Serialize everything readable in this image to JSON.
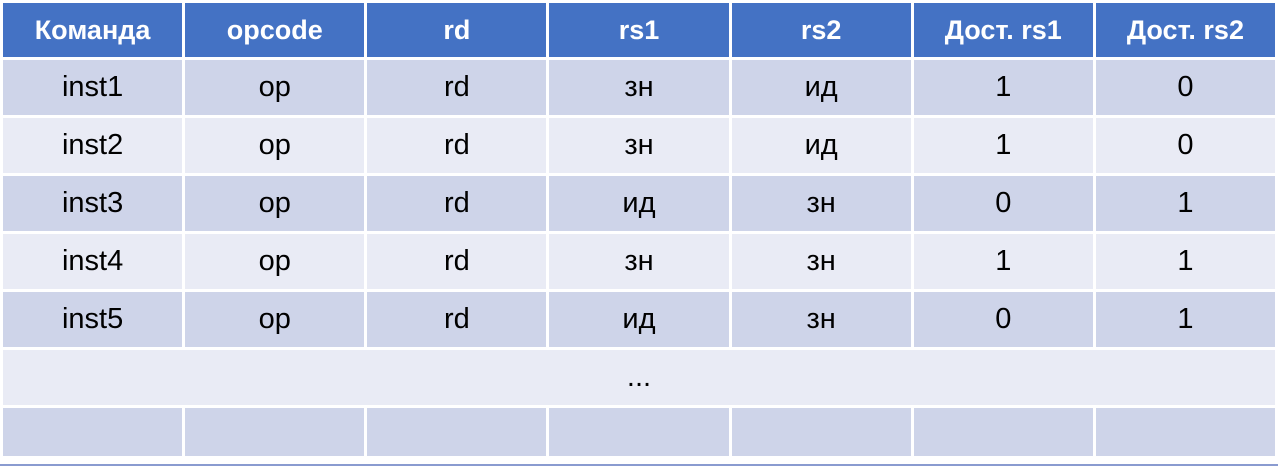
{
  "table": {
    "headers": [
      "Команда",
      "opcode",
      "rd",
      "rs1",
      "rs2",
      "Дост. rs1",
      "Дост. rs2"
    ],
    "rows": [
      [
        "inst1",
        "op",
        "rd",
        "зн",
        "ид",
        "1",
        "0"
      ],
      [
        "inst2",
        "op",
        "rd",
        "зн",
        "ид",
        "1",
        "0"
      ],
      [
        "inst3",
        "op",
        "rd",
        "ид",
        "зн",
        "0",
        "1"
      ],
      [
        "inst4",
        "op",
        "rd",
        "зн",
        "зн",
        "1",
        "1"
      ],
      [
        "inst5",
        "op",
        "rd",
        "ид",
        "зн",
        "0",
        "1"
      ]
    ],
    "ellipsis": "..."
  },
  "colors": {
    "header_bg": "#4472C4",
    "header_text": "#FFFFFF",
    "row_dark": "#CED4E9",
    "row_light": "#E9EBF5",
    "body_text": "#000000",
    "bottom_strip": "#8A9BD0",
    "background": "#FFFFFF"
  }
}
